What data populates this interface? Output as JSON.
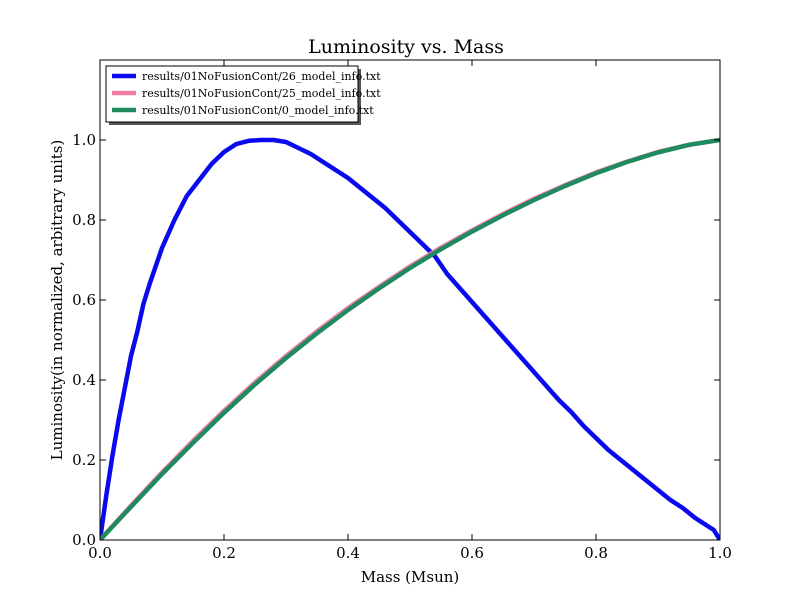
{
  "chart_data": {
    "type": "line",
    "title": "Luminosity vs. Mass",
    "xlabel": "Mass (Msun)",
    "ylabel": "Luminosity(in normalized, arbitrary units)",
    "xlim": [
      0.0,
      1.0
    ],
    "ylim": [
      0.0,
      1.2
    ],
    "xticks": [
      0.0,
      0.2,
      0.4,
      0.6,
      0.8,
      1.0
    ],
    "xtick_labels": [
      "0.0",
      "0.2",
      "0.4",
      "0.6",
      "0.8",
      "1.0"
    ],
    "yticks": [
      0.0,
      0.2,
      0.4,
      0.6,
      0.8,
      1.0
    ],
    "ytick_labels": [
      "0.0",
      "0.2",
      "0.4",
      "0.6",
      "0.8",
      "1.0"
    ],
    "grid": false,
    "legend_position": "top-left",
    "series": [
      {
        "name": "results/01NoFusionCont/26_model_info.txt",
        "color": "#0a0aee",
        "x": [
          0.0,
          0.01,
          0.02,
          0.03,
          0.04,
          0.05,
          0.06,
          0.07,
          0.08,
          0.1,
          0.12,
          0.14,
          0.16,
          0.18,
          0.2,
          0.22,
          0.24,
          0.26,
          0.28,
          0.3,
          0.32,
          0.34,
          0.36,
          0.38,
          0.4,
          0.42,
          0.44,
          0.46,
          0.48,
          0.5,
          0.52,
          0.54,
          0.56,
          0.58,
          0.6,
          0.62,
          0.64,
          0.66,
          0.68,
          0.7,
          0.72,
          0.74,
          0.76,
          0.78,
          0.8,
          0.82,
          0.84,
          0.86,
          0.88,
          0.9,
          0.92,
          0.94,
          0.96,
          0.98,
          0.99,
          1.0
        ],
        "y": [
          0.0,
          0.11,
          0.21,
          0.3,
          0.38,
          0.46,
          0.52,
          0.59,
          0.64,
          0.73,
          0.8,
          0.86,
          0.9,
          0.94,
          0.97,
          0.99,
          0.998,
          1.0,
          1.0,
          0.995,
          0.98,
          0.965,
          0.945,
          0.925,
          0.905,
          0.88,
          0.855,
          0.83,
          0.8,
          0.77,
          0.74,
          0.71,
          0.665,
          0.63,
          0.595,
          0.56,
          0.525,
          0.49,
          0.455,
          0.42,
          0.385,
          0.35,
          0.32,
          0.285,
          0.255,
          0.225,
          0.2,
          0.175,
          0.15,
          0.125,
          0.1,
          0.08,
          0.055,
          0.035,
          0.025,
          0.0
        ]
      },
      {
        "name": "results/01NoFusionCont/25_model_info.txt",
        "color": "#f07ca6",
        "x": [
          0.0,
          0.05,
          0.1,
          0.15,
          0.2,
          0.25,
          0.3,
          0.35,
          0.4,
          0.45,
          0.5,
          0.55,
          0.6,
          0.65,
          0.7,
          0.75,
          0.8,
          0.85,
          0.9,
          0.95,
          1.0
        ],
        "y": [
          0.0,
          0.086,
          0.169,
          0.248,
          0.323,
          0.394,
          0.46,
          0.522,
          0.58,
          0.633,
          0.684,
          0.731,
          0.774,
          0.815,
          0.853,
          0.887,
          0.919,
          0.946,
          0.97,
          0.988,
          1.0
        ]
      },
      {
        "name": "results/01NoFusionCont/0_model_info.txt",
        "color": "#1f8a5e",
        "x": [
          0.0,
          0.05,
          0.1,
          0.15,
          0.2,
          0.25,
          0.3,
          0.35,
          0.4,
          0.45,
          0.5,
          0.55,
          0.6,
          0.65,
          0.7,
          0.75,
          0.8,
          0.85,
          0.9,
          0.95,
          1.0
        ],
        "y": [
          0.0,
          0.083,
          0.165,
          0.243,
          0.318,
          0.389,
          0.455,
          0.517,
          0.575,
          0.629,
          0.68,
          0.727,
          0.771,
          0.812,
          0.85,
          0.885,
          0.917,
          0.945,
          0.969,
          0.988,
          1.0
        ]
      }
    ]
  }
}
